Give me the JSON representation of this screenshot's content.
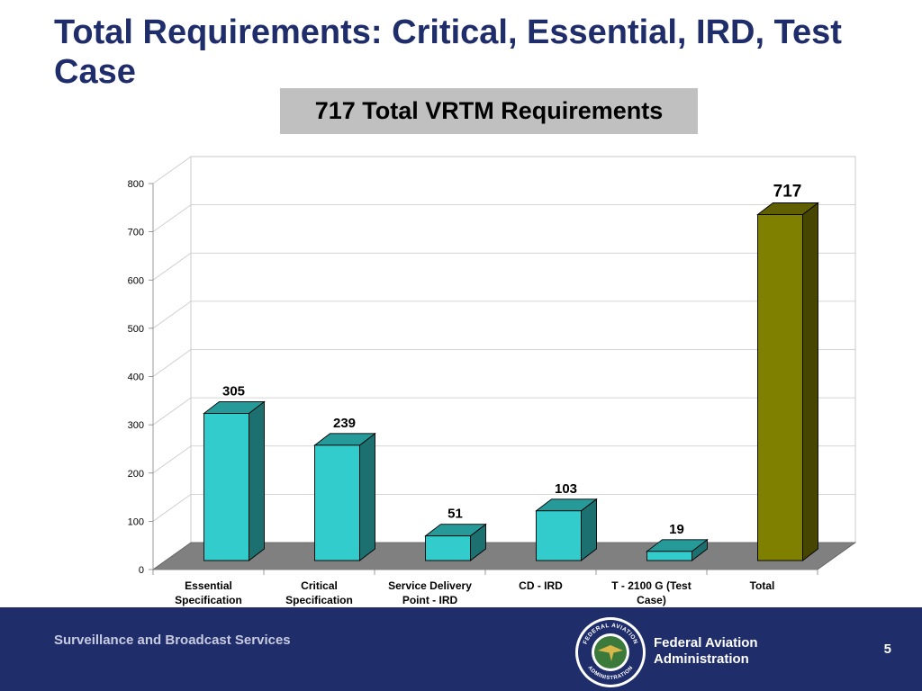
{
  "slide": {
    "title": "Total Requirements: Critical, Essential, IRD, Test Case"
  },
  "chart_data": {
    "type": "bar",
    "title": "717 Total VRTM Requirements",
    "categories": [
      [
        "Essential",
        "Specification"
      ],
      [
        "Critical",
        "Specification"
      ],
      [
        "Service Delivery",
        "Point - IRD"
      ],
      [
        "CD - IRD"
      ],
      [
        "T - 2100 G (Test",
        "Case)"
      ],
      [
        "Total"
      ]
    ],
    "values": [
      305,
      239,
      51,
      103,
      19,
      717
    ],
    "data_labels": [
      "305",
      "239",
      "51",
      "103",
      "19",
      "717"
    ],
    "ylim": [
      0,
      800
    ],
    "yticks": [
      0,
      100,
      200,
      300,
      400,
      500,
      600,
      700,
      800
    ],
    "grid": true,
    "style": "3d-column",
    "bar_colors": [
      "#33cccc",
      "#33cccc",
      "#33cccc",
      "#33cccc",
      "#33cccc",
      "#808000"
    ],
    "xlabel": "",
    "ylabel": ""
  },
  "footer": {
    "org_name": "Surveillance and Broadcast Services",
    "agency_line1": "Federal Aviation",
    "agency_line2": "Administration",
    "page_number": "5",
    "seal_text_top": "FEDERAL AVIATION",
    "seal_text_bottom": "ADMINISTRATION",
    "colors": {
      "background": "#1f2d6b",
      "title": "#1f2d6b"
    }
  }
}
